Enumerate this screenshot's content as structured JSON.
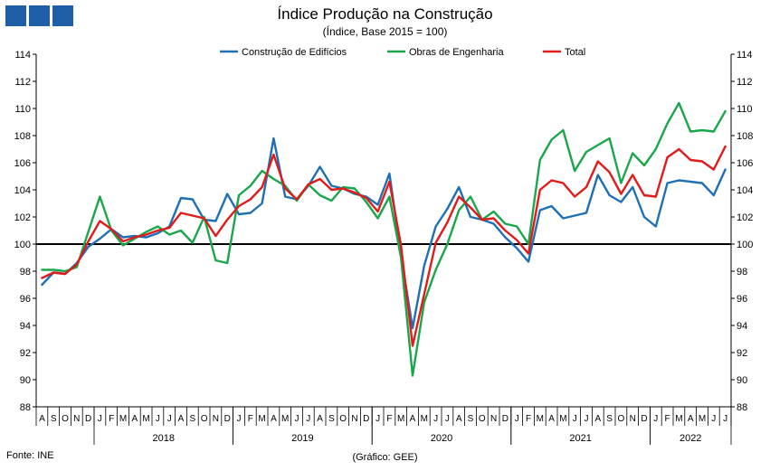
{
  "header": {
    "title": "Índice Produção na Construção",
    "subtitle": "(Índice, Base 2015 = 100)"
  },
  "footer": {
    "source": "Fonte: INE",
    "credit": "(Gráfico: GEE)"
  },
  "colors": {
    "logo": "#1f5fa8",
    "edificios": "#1f6fb4",
    "engenharia": "#1aa64a",
    "total": "#e21a1a",
    "baseline": "#000000"
  },
  "chart_data": {
    "type": "line",
    "title": "Índice Produção na Construção",
    "subtitle": "(Índice, Base 2015 = 100)",
    "ylim": [
      88,
      114
    ],
    "yticks": [
      88,
      90,
      92,
      94,
      96,
      98,
      100,
      102,
      104,
      106,
      108,
      110,
      112,
      114
    ],
    "reference_line": 100,
    "grid": false,
    "legend_position": "top-center",
    "month_labels": [
      "A",
      "S",
      "O",
      "N",
      "D",
      "J",
      "F",
      "M",
      "A",
      "M",
      "J",
      "J",
      "A",
      "S",
      "O",
      "N",
      "D",
      "J",
      "F",
      "M",
      "A",
      "M",
      "J",
      "J",
      "A",
      "S",
      "O",
      "N",
      "D",
      "J",
      "F",
      "M",
      "A",
      "M",
      "J",
      "J",
      "A",
      "S",
      "O",
      "N",
      "D",
      "J",
      "F",
      "M",
      "A",
      "M",
      "J",
      "J",
      "A",
      "S",
      "O",
      "N",
      "D",
      "J",
      "F",
      "M",
      "A",
      "M",
      "J",
      "J"
    ],
    "year_groups": [
      {
        "label": "2018",
        "start": 5,
        "end": 16
      },
      {
        "label": "2019",
        "start": 17,
        "end": 28
      },
      {
        "label": "2020",
        "start": 29,
        "end": 40
      },
      {
        "label": "2021",
        "start": 41,
        "end": 52
      },
      {
        "label": "2022",
        "start": 53,
        "end": 59
      }
    ],
    "x": [
      "2017-08",
      "2017-09",
      "2017-10",
      "2017-11",
      "2017-12",
      "2018-01",
      "2018-02",
      "2018-03",
      "2018-04",
      "2018-05",
      "2018-06",
      "2018-07",
      "2018-08",
      "2018-09",
      "2018-10",
      "2018-11",
      "2018-12",
      "2019-01",
      "2019-02",
      "2019-03",
      "2019-04",
      "2019-05",
      "2019-06",
      "2019-07",
      "2019-08",
      "2019-09",
      "2019-10",
      "2019-11",
      "2019-12",
      "2020-01",
      "2020-02",
      "2020-03",
      "2020-04",
      "2020-05",
      "2020-06",
      "2020-07",
      "2020-08",
      "2020-09",
      "2020-10",
      "2020-11",
      "2020-12",
      "2021-01",
      "2021-02",
      "2021-03",
      "2021-04",
      "2021-05",
      "2021-06",
      "2021-07",
      "2021-08",
      "2021-09",
      "2021-10",
      "2021-11",
      "2021-12",
      "2022-01",
      "2022-02",
      "2022-03",
      "2022-04",
      "2022-05",
      "2022-06",
      "2022-07"
    ],
    "series": [
      {
        "name": "Construção de Edifícios",
        "color": "#1f6fb4",
        "values": [
          97.0,
          97.9,
          97.8,
          98.6,
          99.8,
          100.4,
          101.1,
          100.5,
          100.6,
          100.5,
          100.8,
          101.3,
          103.4,
          103.3,
          101.8,
          101.7,
          103.7,
          102.2,
          102.3,
          103.0,
          107.8,
          103.5,
          103.3,
          104.3,
          105.7,
          104.3,
          104.1,
          103.7,
          103.5,
          102.9,
          105.2,
          99.2,
          93.8,
          98.4,
          101.3,
          102.6,
          104.2,
          102.0,
          101.8,
          101.5,
          100.5,
          99.7,
          98.7,
          102.5,
          102.8,
          101.9,
          102.1,
          102.3,
          105.1,
          103.6,
          103.1,
          104.2,
          102.0,
          101.3,
          104.5,
          104.7,
          104.6,
          104.5,
          103.6,
          105.5
        ]
      },
      {
        "name": "Obras de Engenharia",
        "color": "#1aa64a",
        "values": [
          98.1,
          98.1,
          98.0,
          98.3,
          100.9,
          103.5,
          101.0,
          99.9,
          100.4,
          100.9,
          101.3,
          100.7,
          101.0,
          100.1,
          102.0,
          98.8,
          98.6,
          103.6,
          104.3,
          105.4,
          104.8,
          104.3,
          103.2,
          104.4,
          103.6,
          103.2,
          104.2,
          104.1,
          103.1,
          101.9,
          103.5,
          99.0,
          90.3,
          95.7,
          98.1,
          100.0,
          102.5,
          103.5,
          101.8,
          102.4,
          101.5,
          101.3,
          100.0,
          106.2,
          107.7,
          108.4,
          105.4,
          106.8,
          107.3,
          107.8,
          104.5,
          106.7,
          105.8,
          107.0,
          108.9,
          110.4,
          108.3,
          108.4,
          108.3,
          109.8
        ]
      },
      {
        "name": "Total",
        "color": "#e21a1a",
        "values": [
          97.5,
          97.9,
          97.8,
          98.5,
          100.2,
          101.7,
          101.1,
          100.2,
          100.5,
          100.7,
          101.0,
          101.2,
          102.3,
          102.1,
          101.9,
          100.6,
          101.8,
          102.8,
          103.3,
          104.2,
          106.6,
          104.1,
          103.3,
          104.4,
          104.8,
          104.0,
          104.1,
          103.8,
          103.4,
          102.4,
          104.6,
          99.9,
          92.5,
          96.3,
          100.1,
          101.6,
          103.5,
          102.7,
          101.8,
          101.9,
          101.0,
          100.3,
          99.3,
          104.0,
          104.7,
          104.5,
          103.5,
          104.2,
          106.1,
          105.3,
          103.7,
          105.1,
          103.6,
          103.5,
          106.4,
          107.0,
          106.2,
          106.1,
          105.5,
          107.2
        ]
      }
    ]
  }
}
